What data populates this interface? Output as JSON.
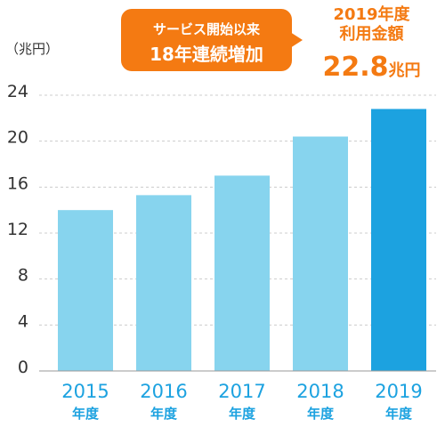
{
  "chart_data": {
    "type": "bar",
    "categories": [
      "2015",
      "2016",
      "2017",
      "2018",
      "2019"
    ],
    "category_suffix": "年度",
    "values": [
      14.0,
      15.3,
      17.0,
      20.4,
      22.8
    ],
    "ylabel": "（兆円）",
    "ylim": [
      0,
      24
    ],
    "yticks": [
      "0",
      "4",
      "8",
      "12",
      "16",
      "20",
      "24"
    ],
    "grid": true,
    "highlight_index": 4
  },
  "callout": {
    "line1": "サービス開始以来",
    "line2": "18年連続増加"
  },
  "usage": {
    "line1": "2019年度",
    "line2": "利用金額",
    "value": "22.8",
    "unit": "兆円"
  },
  "colors": {
    "bar": "#87d4ee",
    "bar_highlight": "#1ca2e0",
    "axis_text": "#333333",
    "grid": "#cccccc",
    "category_text": "#1ca2e0",
    "accent": "#f47a12"
  }
}
